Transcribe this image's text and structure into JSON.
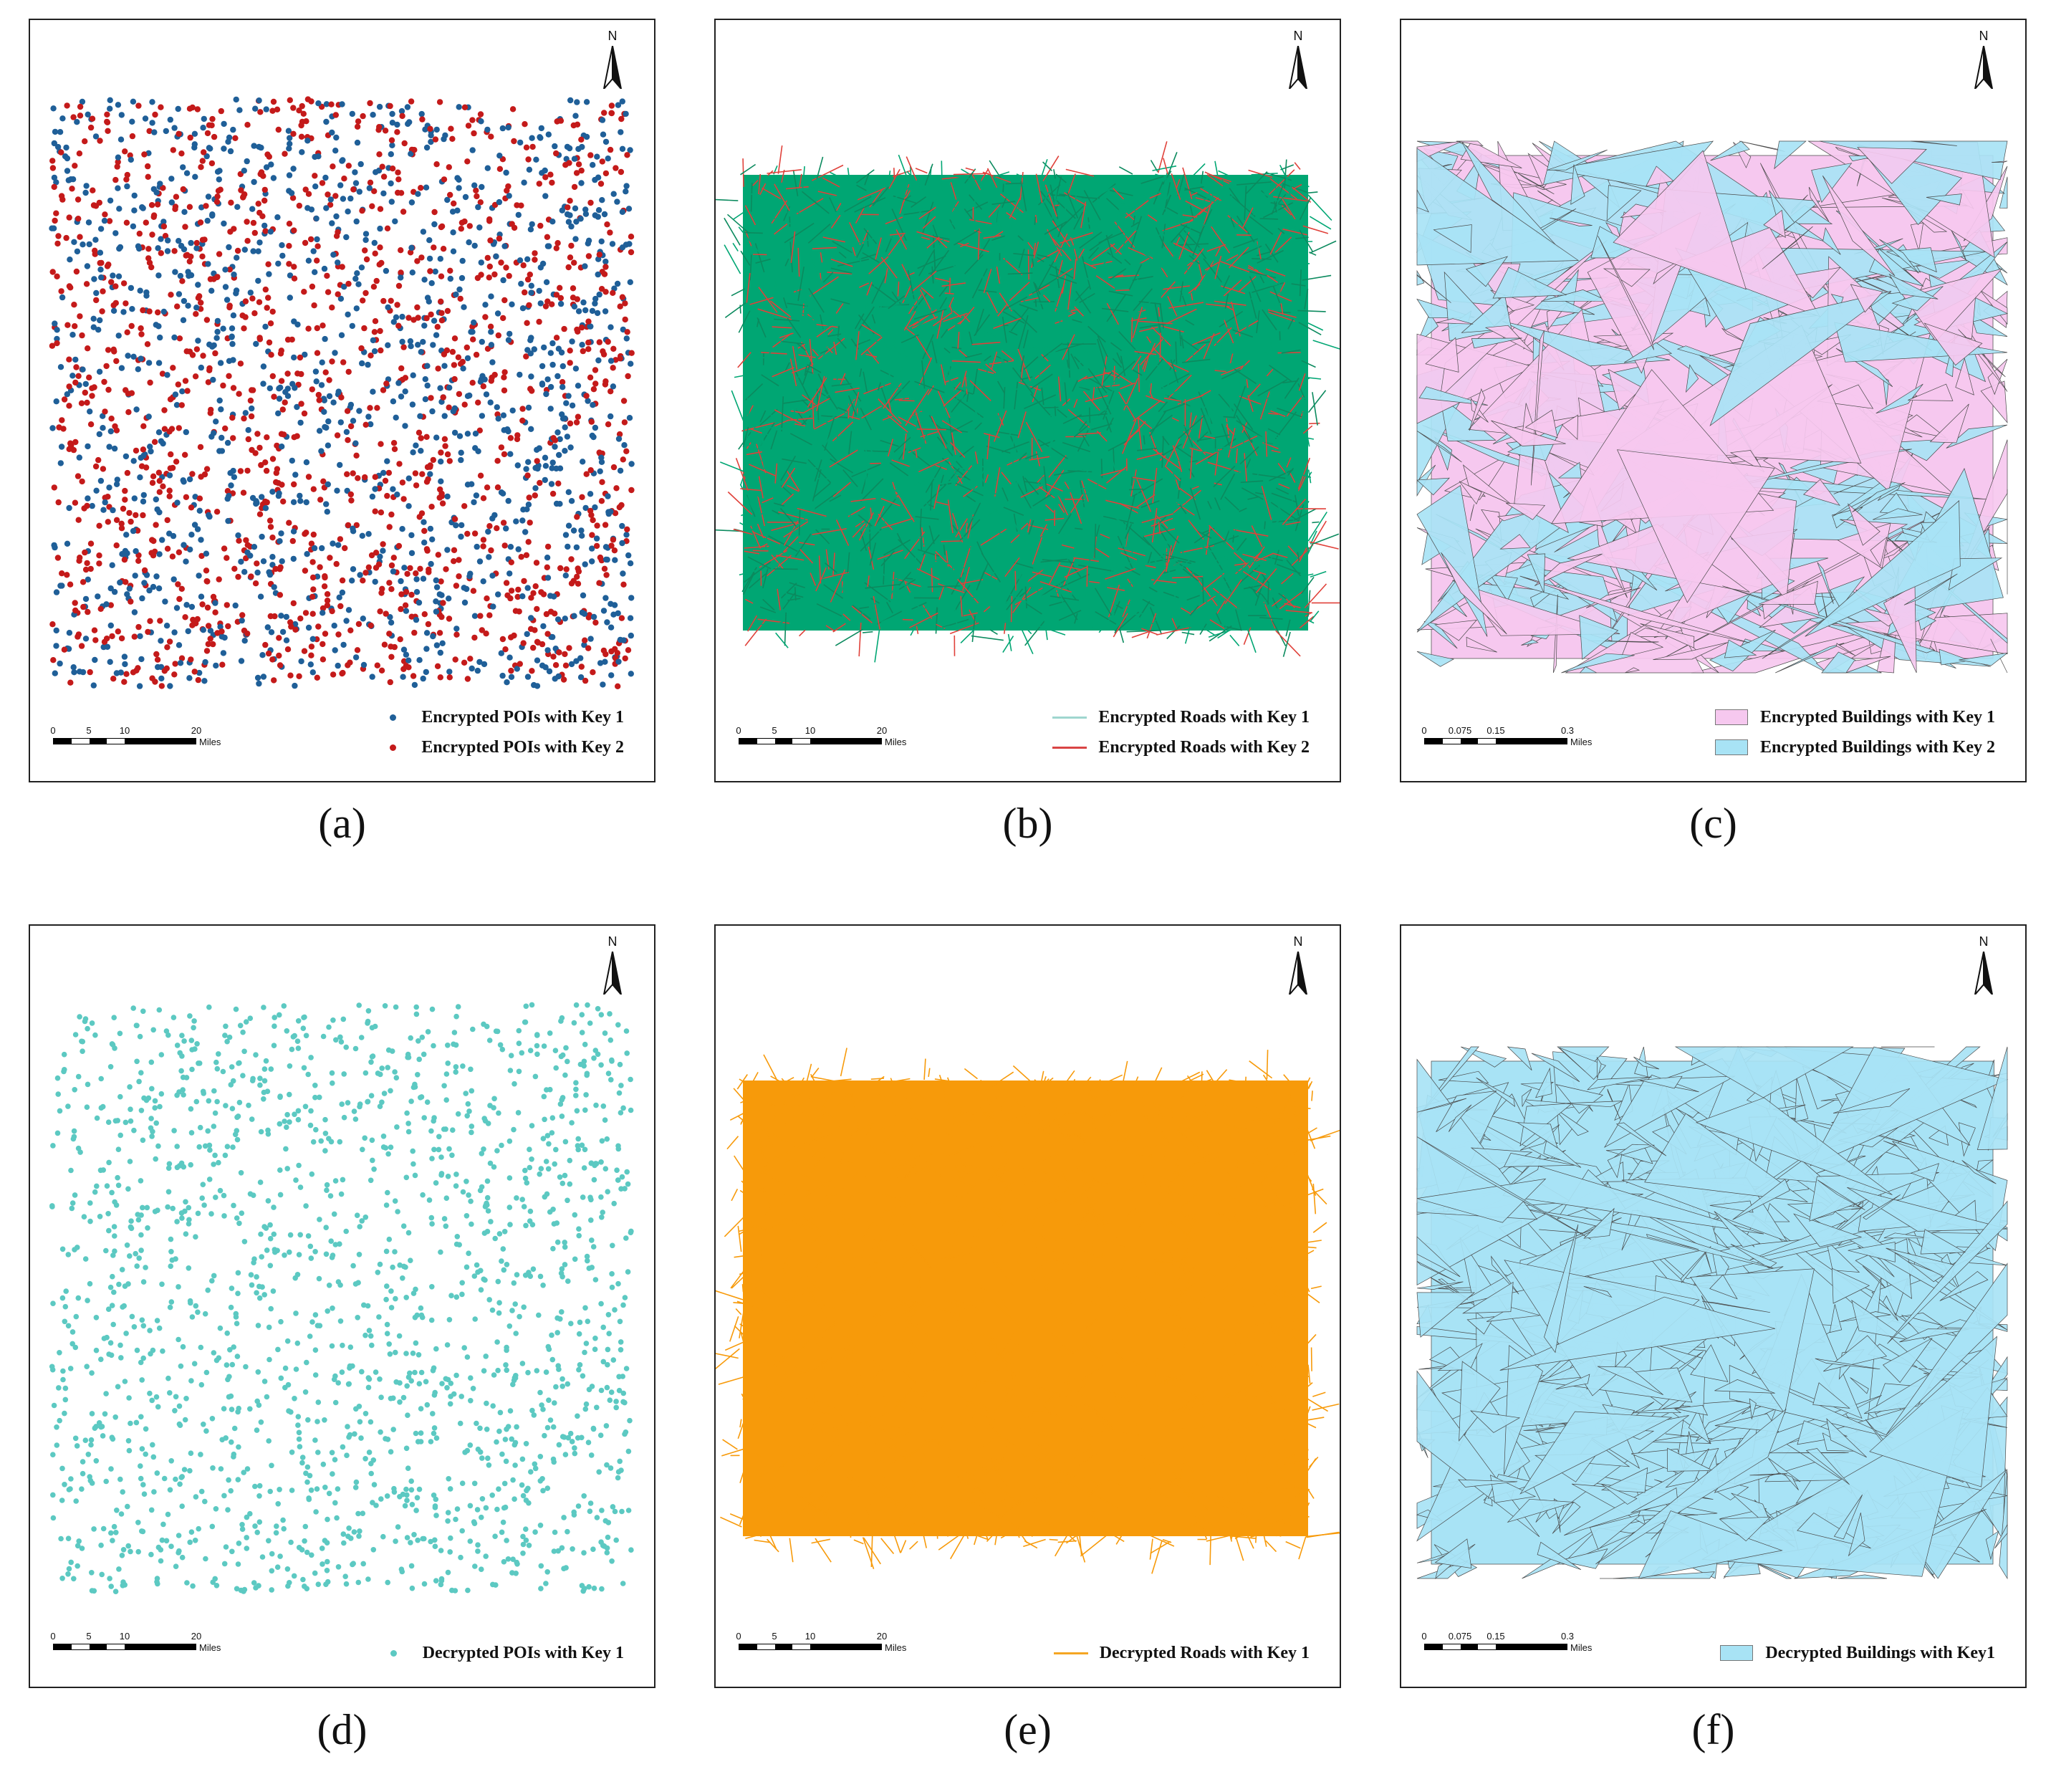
{
  "panels": [
    {
      "id": "a",
      "caption": "(a)",
      "north_label": "N",
      "kind": "points",
      "scale": {
        "ticks": [
          "0",
          "5",
          "10",
          "20"
        ],
        "unit": "Miles"
      },
      "legend": [
        {
          "label": "Encrypted POIs with Key 1",
          "symbol": "dot",
          "color": "#1f5f98"
        },
        {
          "label": "Encrypted POIs with Key 2",
          "symbol": "dot",
          "color": "#c41a1a"
        }
      ],
      "colors": [
        "#1f5f98",
        "#c41a1a"
      ]
    },
    {
      "id": "b",
      "caption": "(b)",
      "north_label": "N",
      "kind": "roads",
      "scale": {
        "ticks": [
          "0",
          "5",
          "10",
          "20"
        ],
        "unit": "Miles"
      },
      "legend": [
        {
          "label": "Encrypted Roads with Key 1",
          "symbol": "line",
          "color": "#9fd6cf"
        },
        {
          "label": "Encrypted Roads with Key 2",
          "symbol": "line",
          "color": "#d94545"
        }
      ],
      "colors": [
        "#00a673",
        "#e0413a",
        "#0b8a5e"
      ]
    },
    {
      "id": "c",
      "caption": "(c)",
      "north_label": "N",
      "kind": "buildings",
      "scale": {
        "ticks": [
          "0",
          "0.075",
          "0.15",
          "0.3"
        ],
        "unit": "Miles"
      },
      "legend": [
        {
          "label": "Encrypted Buildings with Key 1",
          "symbol": "patch",
          "color": "#f6c8ef"
        },
        {
          "label": "Encrypted Buildings with Key 2",
          "symbol": "patch",
          "color": "#a8e3f5"
        }
      ],
      "colors": [
        "#f6c8ef",
        "#a8e3f5"
      ]
    },
    {
      "id": "d",
      "caption": "(d)",
      "north_label": "N",
      "kind": "points",
      "scale": {
        "ticks": [
          "0",
          "5",
          "10",
          "20"
        ],
        "unit": "Miles"
      },
      "legend": [
        {
          "label": "Decrypted POIs with Key 1",
          "symbol": "dot",
          "color": "#5cc9c2"
        }
      ],
      "colors": [
        "#5cc9c2"
      ]
    },
    {
      "id": "e",
      "caption": "(e)",
      "north_label": "N",
      "kind": "roads",
      "scale": {
        "ticks": [
          "0",
          "5",
          "10",
          "20"
        ],
        "unit": "Miles"
      },
      "legend": [
        {
          "label": "Decrypted Roads with Key 1",
          "symbol": "line",
          "color": "#f5a623"
        }
      ],
      "colors": [
        "#f79a0a"
      ]
    },
    {
      "id": "f",
      "caption": "(f)",
      "north_label": "N",
      "kind": "buildings",
      "scale": {
        "ticks": [
          "0",
          "0.075",
          "0.15",
          "0.3"
        ],
        "unit": "Miles"
      },
      "legend": [
        {
          "label": "Decrypted Buildings with Key1",
          "symbol": "patch",
          "color": "#a8e3f5"
        }
      ],
      "colors": [
        "#a8e3f5"
      ]
    }
  ]
}
